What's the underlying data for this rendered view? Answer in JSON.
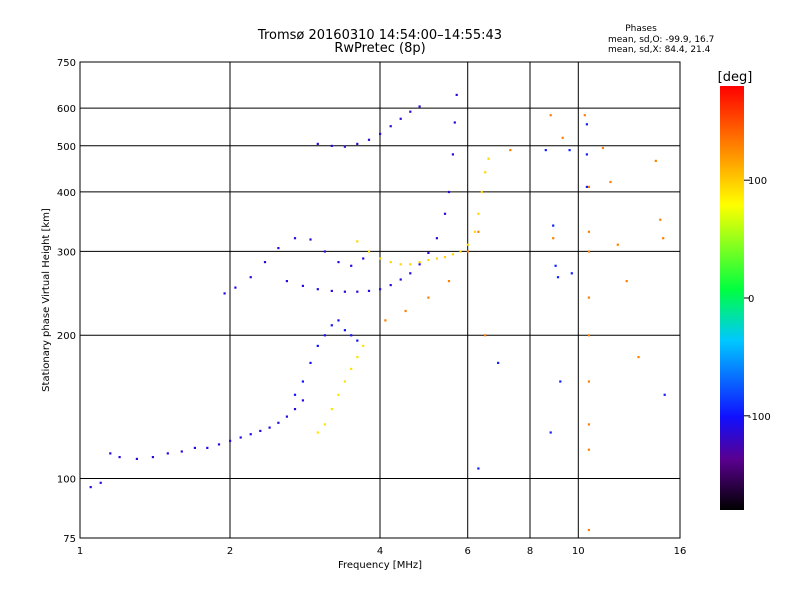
{
  "chart_data": {
    "type": "scatter",
    "title": "Tromsø 20160310 14:54:00–14:55:43",
    "subtitle": "RwPretec (8p)",
    "xlabel": "Frequency [MHz]",
    "ylabel": "Stationary phase Virtual Height [km]",
    "x_scale": "log",
    "y_scale": "log",
    "xlim": [
      1,
      16
    ],
    "ylim": [
      75,
      750
    ],
    "x_ticks": [
      1,
      2,
      4,
      6,
      8,
      10,
      16
    ],
    "y_ticks": [
      75,
      100,
      200,
      300,
      400,
      500,
      600,
      750
    ],
    "grid": true,
    "stats": {
      "title": "Phases",
      "line1": "mean, sd,O: -99.9, 16.7",
      "line2": "mean, sd,X:  84.4, 21.4"
    },
    "colorbar": {
      "label": "[deg]",
      "range": [
        -180,
        180
      ],
      "ticks": [
        100,
        0,
        -100
      ],
      "tick_labels": [
        "100",
        "0",
        "-100"
      ]
    },
    "traces": [
      {
        "phase": -110,
        "points": [
          [
            1.05,
            96
          ],
          [
            1.1,
            98
          ],
          [
            1.15,
            113
          ],
          [
            1.2,
            111
          ],
          [
            1.3,
            110
          ],
          [
            1.4,
            111
          ],
          [
            1.5,
            113
          ],
          [
            1.6,
            114
          ],
          [
            1.7,
            116
          ],
          [
            1.8,
            116
          ],
          [
            1.9,
            118
          ],
          [
            2.0,
            120
          ],
          [
            2.1,
            122
          ],
          [
            2.2,
            124
          ],
          [
            2.3,
            126
          ],
          [
            2.4,
            128
          ],
          [
            2.5,
            131
          ],
          [
            2.6,
            135
          ],
          [
            2.7,
            140
          ],
          [
            2.8,
            146
          ]
        ]
      },
      {
        "phase": -100,
        "points": [
          [
            2.7,
            150
          ],
          [
            2.8,
            160
          ],
          [
            2.9,
            175
          ],
          [
            3.0,
            190
          ],
          [
            3.1,
            200
          ],
          [
            3.2,
            210
          ],
          [
            3.3,
            215
          ],
          [
            3.4,
            205
          ],
          [
            3.5,
            200
          ],
          [
            3.6,
            195
          ]
        ]
      },
      {
        "phase": -110,
        "points": [
          [
            2.6,
            260
          ],
          [
            2.8,
            254
          ],
          [
            3.0,
            250
          ],
          [
            3.2,
            248
          ],
          [
            3.4,
            247
          ],
          [
            3.6,
            247
          ],
          [
            3.8,
            248
          ],
          [
            4.0,
            250
          ],
          [
            4.2,
            255
          ],
          [
            4.4,
            262
          ],
          [
            4.6,
            270
          ],
          [
            4.8,
            282
          ],
          [
            5.0,
            298
          ],
          [
            5.2,
            320
          ],
          [
            5.4,
            360
          ],
          [
            5.5,
            400
          ],
          [
            5.6,
            480
          ],
          [
            5.65,
            560
          ],
          [
            5.7,
            640
          ]
        ]
      },
      {
        "phase": -110,
        "points": [
          [
            1.95,
            245
          ],
          [
            2.05,
            252
          ],
          [
            2.2,
            265
          ],
          [
            2.35,
            285
          ],
          [
            2.5,
            305
          ],
          [
            2.7,
            320
          ],
          [
            2.9,
            318
          ],
          [
            3.1,
            300
          ],
          [
            3.3,
            285
          ],
          [
            3.5,
            280
          ],
          [
            3.7,
            290
          ]
        ]
      },
      {
        "phase": -115,
        "points": [
          [
            3.0,
            505
          ],
          [
            3.2,
            500
          ],
          [
            3.4,
            498
          ],
          [
            3.6,
            505
          ],
          [
            3.8,
            515
          ],
          [
            4.0,
            530
          ],
          [
            4.2,
            550
          ],
          [
            4.4,
            570
          ],
          [
            4.6,
            590
          ],
          [
            4.8,
            605
          ]
        ]
      },
      {
        "phase": 95,
        "points": [
          [
            3.6,
            315
          ],
          [
            3.8,
            300
          ],
          [
            4.0,
            290
          ],
          [
            4.2,
            285
          ],
          [
            4.4,
            282
          ],
          [
            4.6,
            282
          ],
          [
            4.8,
            285
          ],
          [
            5.0,
            288
          ],
          [
            5.2,
            290
          ],
          [
            5.4,
            292
          ],
          [
            5.6,
            296
          ],
          [
            5.8,
            300
          ],
          [
            6.0,
            310
          ],
          [
            6.2,
            330
          ],
          [
            6.3,
            360
          ],
          [
            6.4,
            400
          ],
          [
            6.5,
            440
          ],
          [
            6.6,
            470
          ]
        ]
      },
      {
        "phase": 90,
        "points": [
          [
            3.0,
            125
          ],
          [
            3.1,
            130
          ],
          [
            3.2,
            140
          ],
          [
            3.3,
            150
          ],
          [
            3.4,
            160
          ],
          [
            3.5,
            170
          ],
          [
            3.6,
            180
          ],
          [
            3.7,
            190
          ]
        ]
      },
      {
        "phase": 130,
        "points": [
          [
            4.1,
            215
          ],
          [
            4.5,
            225
          ],
          [
            5.0,
            240
          ],
          [
            5.5,
            260
          ],
          [
            6.0,
            300
          ],
          [
            6.3,
            330
          ],
          [
            6.5,
            200
          ],
          [
            7.3,
            490
          ],
          [
            8.8,
            580
          ],
          [
            9.3,
            520
          ],
          [
            10.3,
            580
          ],
          [
            10.5,
            410
          ],
          [
            10.5,
            330
          ],
          [
            10.5,
            300
          ],
          [
            10.5,
            240
          ],
          [
            10.5,
            200
          ],
          [
            10.5,
            160
          ],
          [
            10.5,
            130
          ],
          [
            10.5,
            115
          ],
          [
            10.5,
            78
          ],
          [
            11.2,
            495
          ],
          [
            11.6,
            420
          ],
          [
            12.0,
            310
          ],
          [
            12.5,
            260
          ],
          [
            13.2,
            180
          ],
          [
            14.3,
            465
          ],
          [
            14.6,
            350
          ],
          [
            14.8,
            320
          ],
          [
            8.9,
            320
          ]
        ]
      },
      {
        "phase": -95,
        "points": [
          [
            8.6,
            490
          ],
          [
            8.9,
            340
          ],
          [
            9.0,
            280
          ],
          [
            9.1,
            265
          ],
          [
            9.2,
            160
          ],
          [
            8.8,
            125
          ],
          [
            9.6,
            490
          ],
          [
            9.7,
            270
          ],
          [
            10.4,
            555
          ],
          [
            10.4,
            480
          ],
          [
            10.4,
            410
          ],
          [
            6.3,
            105
          ],
          [
            6.9,
            175
          ],
          [
            14.9,
            150
          ]
        ]
      }
    ]
  }
}
